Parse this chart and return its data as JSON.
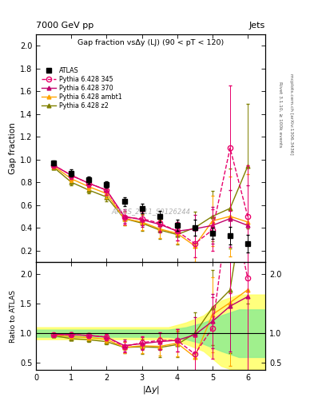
{
  "title_top": "7000 GeV pp",
  "title_top_right": "Jets",
  "plot_title": "Gap fraction vsΔy (LJ) (90 < pT < 120)",
  "ylabel_main": "Gap fraction",
  "ylabel_ratio": "Ratio to ATLAS",
  "xlabel": "|\\u0394y|",
  "watermark": "ATLAS_2011_S9126244",
  "right_label": "Rivet 3.1.10, ≥ 100k events",
  "right_label2": "mcplots.cern.ch [arXiv:1306.3436]",
  "atlas_x": [
    0.5,
    1.0,
    1.5,
    2.0,
    2.5,
    3.0,
    3.5,
    4.0,
    4.5,
    5.0,
    5.5,
    6.0
  ],
  "atlas_y": [
    0.97,
    0.88,
    0.82,
    0.78,
    0.63,
    0.57,
    0.5,
    0.42,
    0.4,
    0.35,
    0.33,
    0.26
  ],
  "atlas_yerr": [
    0.02,
    0.03,
    0.03,
    0.03,
    0.04,
    0.04,
    0.05,
    0.05,
    0.07,
    0.05,
    0.08,
    0.08
  ],
  "p345_x": [
    0.5,
    1.0,
    1.5,
    2.0,
    2.5,
    3.0,
    3.5,
    4.0,
    4.5,
    5.0,
    5.5,
    6.0
  ],
  "p345_y": [
    0.95,
    0.86,
    0.79,
    0.73,
    0.49,
    0.48,
    0.44,
    0.37,
    0.26,
    0.38,
    1.1,
    0.5
  ],
  "p345_yerr": [
    0.02,
    0.03,
    0.03,
    0.04,
    0.06,
    0.06,
    0.07,
    0.08,
    0.12,
    0.18,
    0.55,
    0.45
  ],
  "p370_x": [
    0.5,
    1.0,
    1.5,
    2.0,
    2.5,
    3.0,
    3.5,
    4.0,
    4.5,
    5.0,
    5.5,
    6.0
  ],
  "p370_y": [
    0.95,
    0.86,
    0.79,
    0.73,
    0.5,
    0.47,
    0.43,
    0.37,
    0.39,
    0.42,
    0.48,
    0.42
  ],
  "p370_yerr": [
    0.02,
    0.03,
    0.03,
    0.04,
    0.06,
    0.06,
    0.07,
    0.08,
    0.12,
    0.16,
    0.25,
    0.35
  ],
  "pambt1_x": [
    0.5,
    1.0,
    1.5,
    2.0,
    2.5,
    3.0,
    3.5,
    4.0,
    4.5,
    5.0,
    5.5,
    6.0
  ],
  "pambt1_y": [
    0.94,
    0.83,
    0.76,
    0.7,
    0.48,
    0.45,
    0.39,
    0.35,
    0.24,
    0.46,
    0.5,
    0.45
  ],
  "pambt1_yerr": [
    0.02,
    0.03,
    0.03,
    0.04,
    0.06,
    0.07,
    0.08,
    0.09,
    0.14,
    0.22,
    0.35,
    0.42
  ],
  "pz2_x": [
    0.5,
    1.0,
    1.5,
    2.0,
    2.5,
    3.0,
    3.5,
    4.0,
    4.5,
    5.0,
    5.5,
    6.0
  ],
  "pz2_y": [
    0.93,
    0.8,
    0.73,
    0.67,
    0.48,
    0.44,
    0.38,
    0.34,
    0.4,
    0.5,
    0.57,
    0.94
  ],
  "pz2_yerr": [
    0.02,
    0.03,
    0.03,
    0.04,
    0.06,
    0.07,
    0.08,
    0.09,
    0.14,
    0.22,
    0.35,
    0.55
  ],
  "color_atlas": "#000000",
  "color_p345": "#e8006b",
  "color_p370": "#c0006b",
  "color_pambt1": "#ffa500",
  "color_pz2": "#808000",
  "ylim_main": [
    0.1,
    2.1
  ],
  "ylim_ratio": [
    0.38,
    2.2
  ],
  "xlim": [
    0.0,
    6.5
  ],
  "ratio_band_outer_color": "#ffff66",
  "ratio_band_inner_color": "#90ee90",
  "ratio_band_outer_alpha": 0.85,
  "ratio_band_inner_alpha": 0.85,
  "band_x": [
    0.0,
    0.25,
    3.75,
    4.25,
    4.75,
    5.25,
    5.75,
    6.5
  ],
  "band_outer_hi": [
    1.1,
    1.1,
    1.1,
    1.18,
    1.3,
    1.55,
    1.65,
    1.65
  ],
  "band_outer_lo": [
    0.9,
    0.9,
    0.9,
    0.82,
    0.7,
    0.45,
    0.35,
    0.35
  ],
  "band_inner_hi": [
    1.06,
    1.06,
    1.06,
    1.1,
    1.18,
    1.3,
    1.4,
    1.4
  ],
  "band_inner_lo": [
    0.94,
    0.94,
    0.94,
    0.9,
    0.82,
    0.7,
    0.6,
    0.6
  ]
}
